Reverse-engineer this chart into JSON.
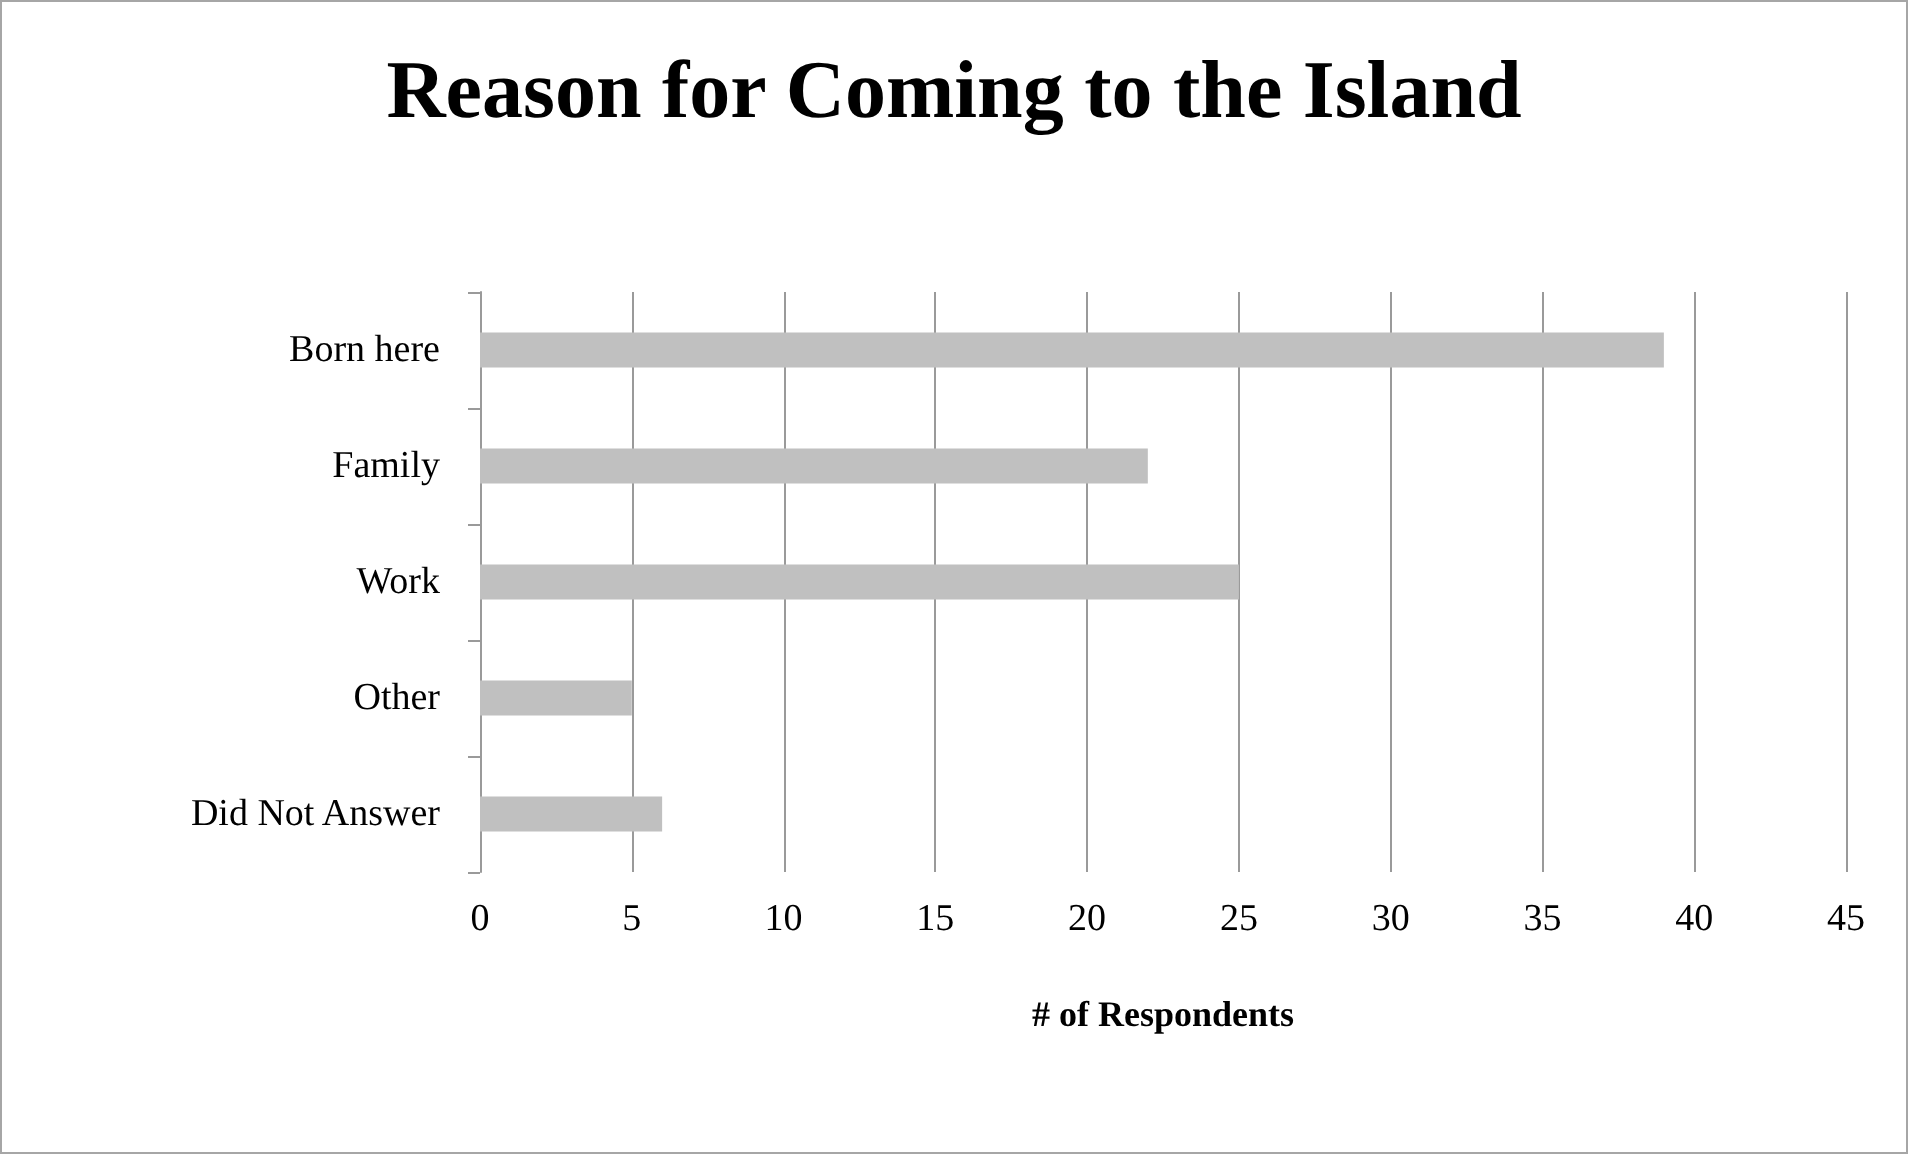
{
  "chart_data": {
    "type": "bar",
    "orientation": "horizontal",
    "title": "Reason for Coming to the Island",
    "xlabel": "# of Respondents",
    "categories": [
      "Born here",
      "Family",
      "Work",
      "Other",
      "Did Not Answer"
    ],
    "values": [
      39,
      22,
      25,
      5,
      6
    ],
    "color": "#c0c0c0",
    "xlim": [
      0,
      45
    ],
    "xticks": [
      0,
      5,
      10,
      15,
      20,
      25,
      30,
      35,
      40,
      45
    ],
    "grid": "x"
  }
}
